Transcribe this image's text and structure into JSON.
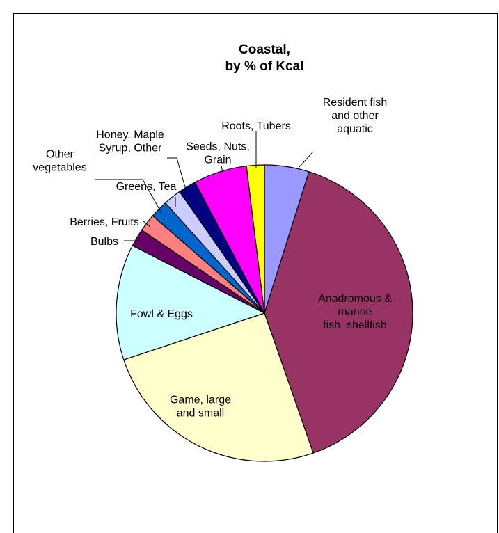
{
  "chart_data": {
    "type": "pie",
    "title_lines": [
      "Coastal,",
      "by % of Kcal"
    ],
    "slices": [
      {
        "label_lines": [
          "Resident fish",
          "and other",
          "aquatic"
        ],
        "value": 5,
        "color": "#9999ff"
      },
      {
        "label_lines": [
          "Anadromous &",
          "marine",
          "fish, shellfish"
        ],
        "value": 41,
        "color": "#993366"
      },
      {
        "label_lines": [
          "Game, large",
          "and small"
        ],
        "value": 26,
        "color": "#ffffcc"
      },
      {
        "label_lines": [
          "Fowl & Eggs"
        ],
        "value": 13,
        "color": "#ccffff"
      },
      {
        "label_lines": [
          "Bulbs"
        ],
        "value": 2,
        "color": "#660066"
      },
      {
        "label_lines": [
          "Berries, Fruits"
        ],
        "value": 2,
        "color": "#ff8080"
      },
      {
        "label_lines": [
          "Other",
          "vegetables"
        ],
        "value": 2,
        "color": "#0066cc"
      },
      {
        "label_lines": [
          "Greens, Tea"
        ],
        "value": 2,
        "color": "#ccccff"
      },
      {
        "label_lines": [
          "Honey, Maple",
          "Syrup, Other"
        ],
        "value": 2,
        "color": "#000080"
      },
      {
        "label_lines": [
          "Seeds, Nuts,",
          "Grain"
        ],
        "value": 6,
        "color": "#ff00ff"
      },
      {
        "label_lines": [
          "Roots, Tubers"
        ],
        "value": 2,
        "color": "#ffff00"
      }
    ]
  }
}
